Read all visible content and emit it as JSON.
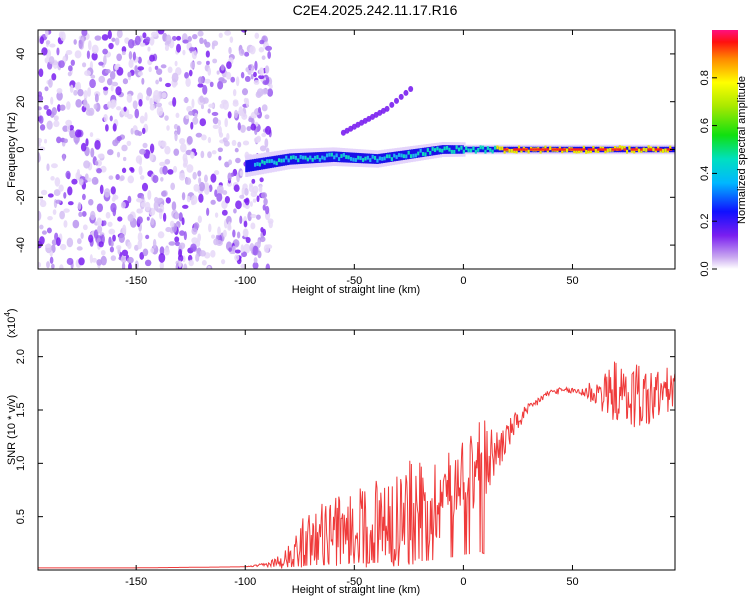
{
  "title": "C2E4.2025.242.11.17.R16",
  "chart_data": [
    {
      "type": "heatmap",
      "xlabel": "Height of straight line (km)",
      "ylabel": "Frequency (Hz)",
      "xlim": [
        -195,
        97
      ],
      "ylim": [
        -50,
        50
      ],
      "xticks": [
        -150,
        -100,
        -50,
        0,
        50
      ],
      "yticks": [
        -40,
        -20,
        0,
        20,
        40
      ],
      "colorbar": {
        "label": "Normalized spectral amplitude",
        "range": [
          0,
          1
        ],
        "ticks": [
          "0.0",
          "0.2",
          "0.4",
          "0.6",
          "0.8"
        ],
        "tick_values": [
          0.0,
          0.2,
          0.4,
          0.6,
          0.8
        ]
      },
      "description_points": {
        "noise_region_x": [
          -195,
          -92
        ],
        "carrier_band": [
          {
            "x": -100,
            "f": -7,
            "amp": 0.35
          },
          {
            "x": -80,
            "f": -4,
            "amp": 0.45
          },
          {
            "x": -60,
            "f": -3,
            "amp": 0.5
          },
          {
            "x": -40,
            "f": -4,
            "amp": 0.5
          },
          {
            "x": -25,
            "f": -2,
            "amp": 0.55
          },
          {
            "x": -10,
            "f": 0,
            "amp": 0.7
          },
          {
            "x": 0,
            "f": 0,
            "amp": 0.7
          },
          {
            "x": 20,
            "f": 0,
            "amp": 0.9
          },
          {
            "x": 50,
            "f": 0,
            "amp": 0.9
          },
          {
            "x": 95,
            "f": 0,
            "amp": 0.85
          }
        ],
        "harmonic_branch": [
          {
            "x": -55,
            "f": 7
          },
          {
            "x": -45,
            "f": 12
          },
          {
            "x": -35,
            "f": 17
          },
          {
            "x": -22,
            "f": 27
          }
        ]
      }
    },
    {
      "type": "line",
      "xlabel": "Height of straight line (km)",
      "ylabel": "SNR (10 * v/v)",
      "y_multiplier": "(x10",
      "y_multiplier_exp": "4",
      "y_multiplier_close": ")",
      "xlim": [
        -195,
        97
      ],
      "ylim": [
        0.0,
        2.25
      ],
      "xticks": [
        -150,
        -100,
        -50,
        0,
        50
      ],
      "yticks": [
        0.5,
        1.0,
        1.5,
        2.0
      ],
      "ytick_labels": [
        "0.5",
        "1.0",
        "1.5",
        "2.0"
      ],
      "color": "#ef3a3a",
      "x": [
        -195,
        -150,
        -100,
        -90,
        -82,
        -78,
        -70,
        -60,
        -50,
        -40,
        -30,
        -20,
        -15,
        -10,
        -5,
        0,
        3,
        6,
        8,
        10,
        15,
        20,
        25,
        30,
        35,
        40,
        45,
        50,
        55,
        60,
        65,
        70,
        75,
        80,
        85,
        90,
        97
      ],
      "values": [
        0.02,
        0.02,
        0.03,
        0.05,
        0.1,
        0.2,
        0.3,
        0.35,
        0.4,
        0.45,
        0.5,
        0.55,
        0.6,
        0.7,
        0.8,
        0.95,
        1.0,
        1.2,
        1.1,
        1.0,
        1.1,
        1.25,
        1.4,
        1.5,
        1.6,
        1.67,
        1.68,
        1.68,
        1.67,
        1.67,
        1.65,
        1.68,
        1.6,
        1.65,
        1.6,
        1.65,
        1.7
      ],
      "noise_amp": [
        0.0,
        0.0,
        0.0,
        0.02,
        0.08,
        0.18,
        0.28,
        0.32,
        0.35,
        0.45,
        0.5,
        0.5,
        0.45,
        0.4,
        0.35,
        0.3,
        0.4,
        0.8,
        0.6,
        0.4,
        0.25,
        0.15,
        0.1,
        0.06,
        0.04,
        0.03,
        0.03,
        0.03,
        0.06,
        0.15,
        0.2,
        0.3,
        0.25,
        0.35,
        0.3,
        0.25,
        0.2
      ]
    }
  ]
}
